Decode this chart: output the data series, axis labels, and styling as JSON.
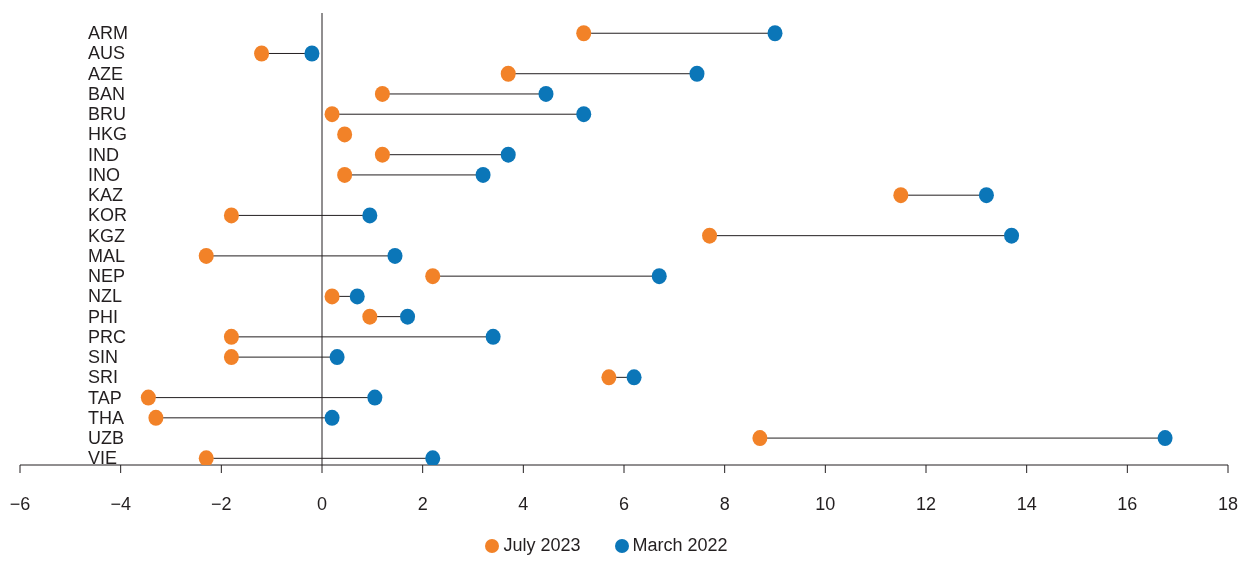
{
  "chart_data": {
    "type": "scatter",
    "orientation": "horizontal",
    "categories": [
      "ARM",
      "AUS",
      "AZE",
      "BAN",
      "BRU",
      "HKG",
      "IND",
      "INO",
      "KAZ",
      "KOR",
      "KGZ",
      "MAL",
      "NEP",
      "NZL",
      "PHI",
      "PRC",
      "SIN",
      "SRI",
      "TAP",
      "THA",
      "UZB",
      "VIE"
    ],
    "series": [
      {
        "name": "March 2022",
        "color": "#0b76b8",
        "values": [
          9.0,
          -0.2,
          7.45,
          4.45,
          5.2,
          null,
          3.7,
          3.2,
          13.2,
          0.95,
          13.7,
          1.45,
          6.7,
          0.7,
          1.7,
          3.4,
          0.3,
          6.2,
          1.05,
          0.2,
          16.75,
          2.2
        ]
      },
      {
        "name": "July 2023",
        "color": "#f28228",
        "values": [
          5.2,
          -1.2,
          3.7,
          1.2,
          0.2,
          0.45,
          1.2,
          0.45,
          11.5,
          -1.8,
          7.7,
          -2.3,
          2.2,
          0.2,
          0.95,
          -1.8,
          -1.8,
          5.7,
          -3.45,
          -3.3,
          8.7,
          -2.3
        ]
      }
    ],
    "xlim": [
      -6,
      18
    ],
    "xticks": [
      -6,
      -4,
      -2,
      0,
      2,
      4,
      6,
      8,
      10,
      12,
      14,
      16,
      18
    ],
    "ref_lines": [
      {
        "axis": "x",
        "value": 0
      }
    ],
    "legend": "bottom",
    "marker": "circle"
  }
}
